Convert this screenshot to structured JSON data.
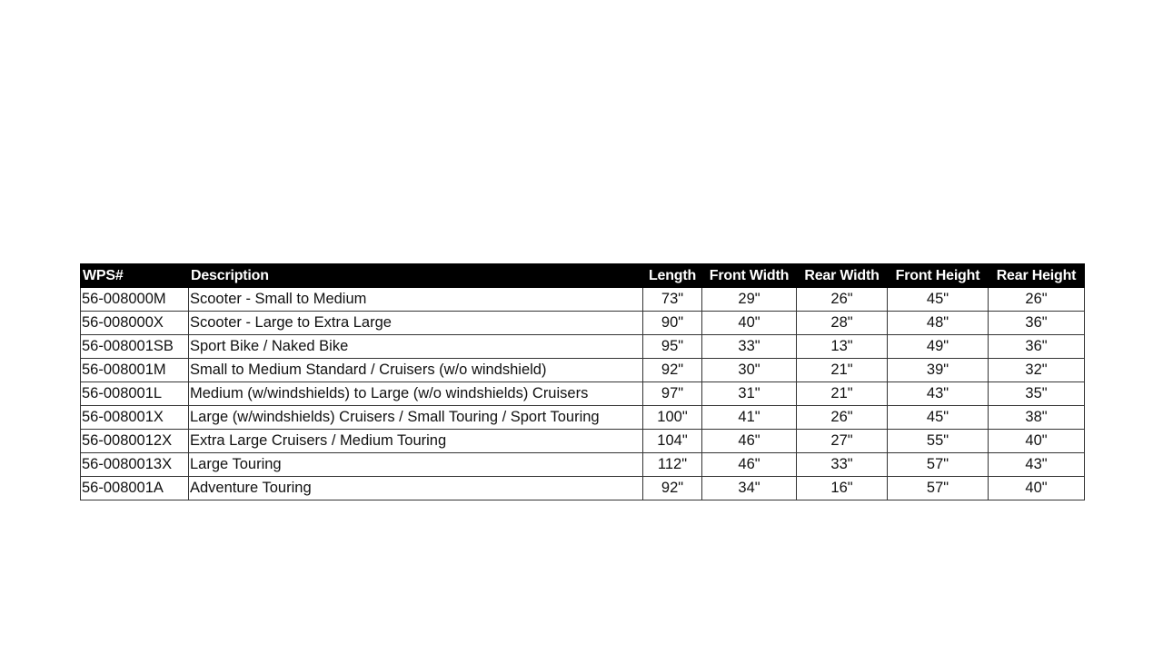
{
  "table": {
    "headers": [
      "WPS#",
      "Description",
      "Length",
      "Front Width",
      "Rear Width",
      "Front Height",
      "Rear Height"
    ],
    "rows": [
      [
        "56-008000M",
        "Scooter - Small to Medium",
        "73\"",
        "29\"",
        "26\"",
        "45\"",
        "26\""
      ],
      [
        "56-008000X",
        "Scooter - Large to Extra Large",
        "90\"",
        "40\"",
        "28\"",
        "48\"",
        "36\""
      ],
      [
        "56-008001SB",
        "Sport Bike / Naked Bike",
        "95\"",
        "33\"",
        "13\"",
        "49\"",
        "36\""
      ],
      [
        "56-008001M",
        "Small to Medium Standard / Cruisers (w/o windshield)",
        "92\"",
        "30\"",
        "21\"",
        "39\"",
        "32\""
      ],
      [
        "56-008001L",
        "Medium (w/windshields) to Large (w/o windshields) Cruisers",
        "97\"",
        "31\"",
        "21\"",
        "43\"",
        "35\""
      ],
      [
        "56-008001X",
        "Large (w/windshields) Cruisers / Small Touring / Sport Touring",
        "100\"",
        "41\"",
        "26\"",
        "45\"",
        "38\""
      ],
      [
        "56-0080012X",
        "Extra Large Cruisers / Medium Touring",
        "104\"",
        "46\"",
        "27\"",
        "55\"",
        "40\""
      ],
      [
        "56-0080013X",
        "Large Touring",
        "112\"",
        "46\"",
        "33\"",
        "57\"",
        "43\""
      ],
      [
        "56-008001A",
        "Adventure Touring",
        "92\"",
        "34\"",
        "16\"",
        "57\"",
        "40\""
      ]
    ]
  }
}
